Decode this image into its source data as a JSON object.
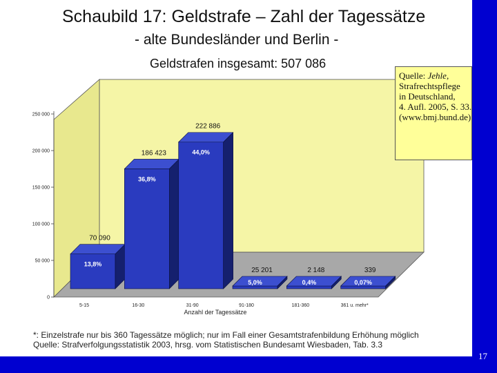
{
  "slide": {
    "title": "Schaubild 17: Geldstrafe – Zahl der Tagessätze",
    "subtitle": "- alte Bundesländer und Berlin -",
    "total": "Geldstrafen insgesamt: 507 086",
    "page_number": "17",
    "source_lines": [
      "Quelle: ",
      "Jehle,",
      "Strafrechtspflege",
      "in Deutschland,",
      "4. Aufl. 2005, S. 33.",
      "(www.bmj.bund.de)"
    ],
    "footnote_1": "*: Einzelstrafe nur bis 360 Tagessätze möglich; nur im Fall einer Gesamtstrafenbildung Erhöhung möglich",
    "footnote_2": "Quelle: Strafverfolgungsstatistik 2003, hrsg. vom Statistischen Bundesamt Wiesbaden, Tab. 3.3"
  },
  "colors": {
    "bar_front": "#2a3bbf",
    "bar_side": "#15206e",
    "bar_top": "#3c4fd0",
    "wall": "#f5f5a6",
    "floor": "#a8a8a8",
    "accent": "#0000d0"
  },
  "chart_data": {
    "type": "bar",
    "title": "Geldstrafen insgesamt: 507 086",
    "xlabel": "Anzahl der Tagessätze",
    "ylabel": "",
    "ylim": [
      0,
      250000
    ],
    "yticks": [
      0,
      50000,
      100000,
      150000,
      200000,
      250000
    ],
    "ytick_labels": [
      "0",
      "50 000",
      "100 000",
      "150 000",
      "200 000",
      "250 000"
    ],
    "categories": [
      "5-15",
      "16-30",
      "31-90",
      "91-180",
      "181-360",
      "361 u. mehr*"
    ],
    "values": [
      70090,
      186423,
      222886,
      25201,
      2148,
      339
    ],
    "value_labels": [
      "70 090",
      "186 423",
      "222 886",
      "25 201",
      "2 148",
      "339"
    ],
    "percent_labels": [
      "13,8%",
      "36,8%",
      "44,0%",
      "5,0%",
      "0,4%",
      "0,07%"
    ]
  }
}
